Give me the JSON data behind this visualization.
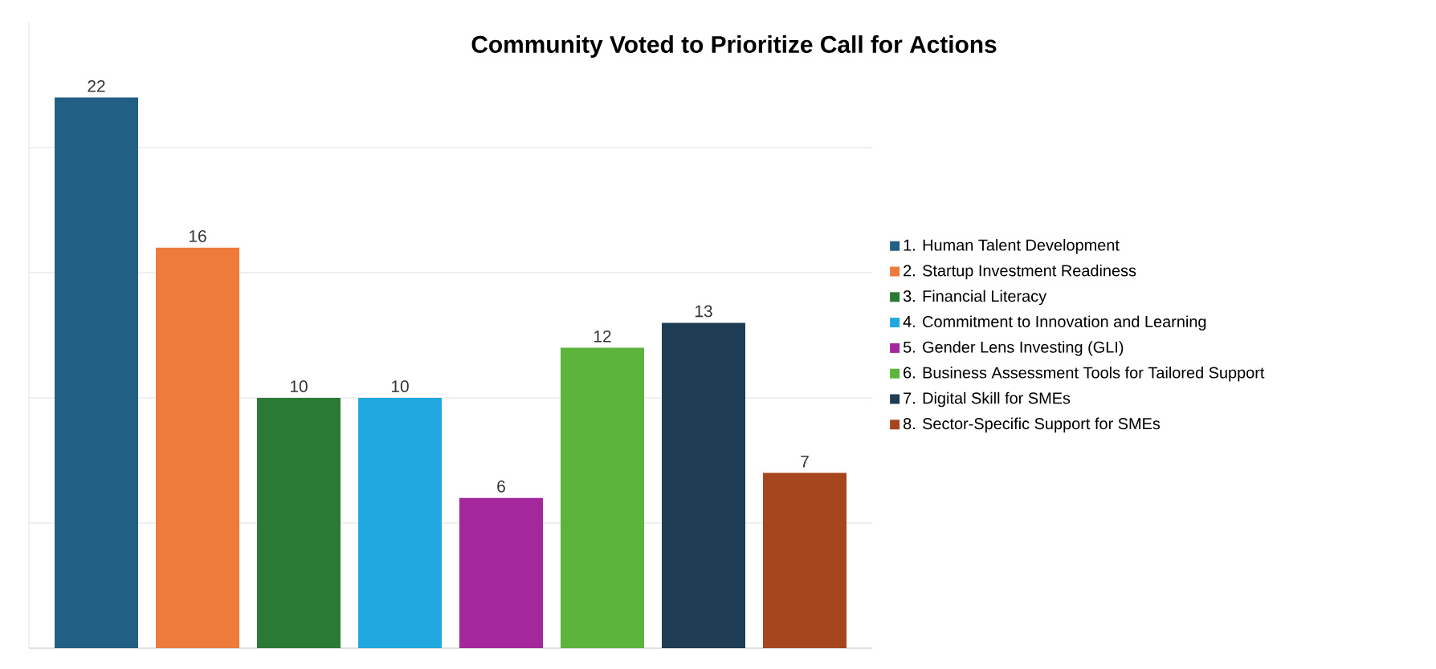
{
  "chart_data": {
    "type": "bar",
    "title": "Community Voted to Prioritize Call for Actions",
    "categories": [
      null
    ],
    "series": [
      {
        "name": "1. Human Talent Development",
        "color": "#225f84",
        "values": [
          22
        ]
      },
      {
        "name": "2. Startup Investment Readiness",
        "color": "#ee7b3c",
        "values": [
          16
        ]
      },
      {
        "name": "3. Financial Literacy",
        "color": "#2a7a35",
        "values": [
          10
        ]
      },
      {
        "name": "4. Commitment to Innovation and Learning",
        "color": "#22a8e0",
        "values": [
          10
        ]
      },
      {
        "name": "5. Gender Lens Investing (GLI)",
        "color": "#a5279c",
        "values": [
          6
        ]
      },
      {
        "name": "6. Business Assessment Tools for Tailored Support",
        "color": "#5db43c",
        "values": [
          12
        ]
      },
      {
        "name": "7. Digital Skill for SMEs",
        "color": "#1f3d55",
        "values": [
          13
        ]
      },
      {
        "name": "8. Sector-Specific Support for SMEs",
        "color": "#a5461f",
        "values": [
          7
        ]
      }
    ],
    "data_labels": true,
    "ylim": [
      0,
      25
    ],
    "yticks": [
      {
        "value": 0,
        "label": null
      },
      {
        "value": 5,
        "label": null
      },
      {
        "value": 10,
        "label": null
      },
      {
        "value": 15,
        "label": null
      },
      {
        "value": 20,
        "label": null
      }
    ],
    "grid": "y",
    "legend": "right"
  }
}
